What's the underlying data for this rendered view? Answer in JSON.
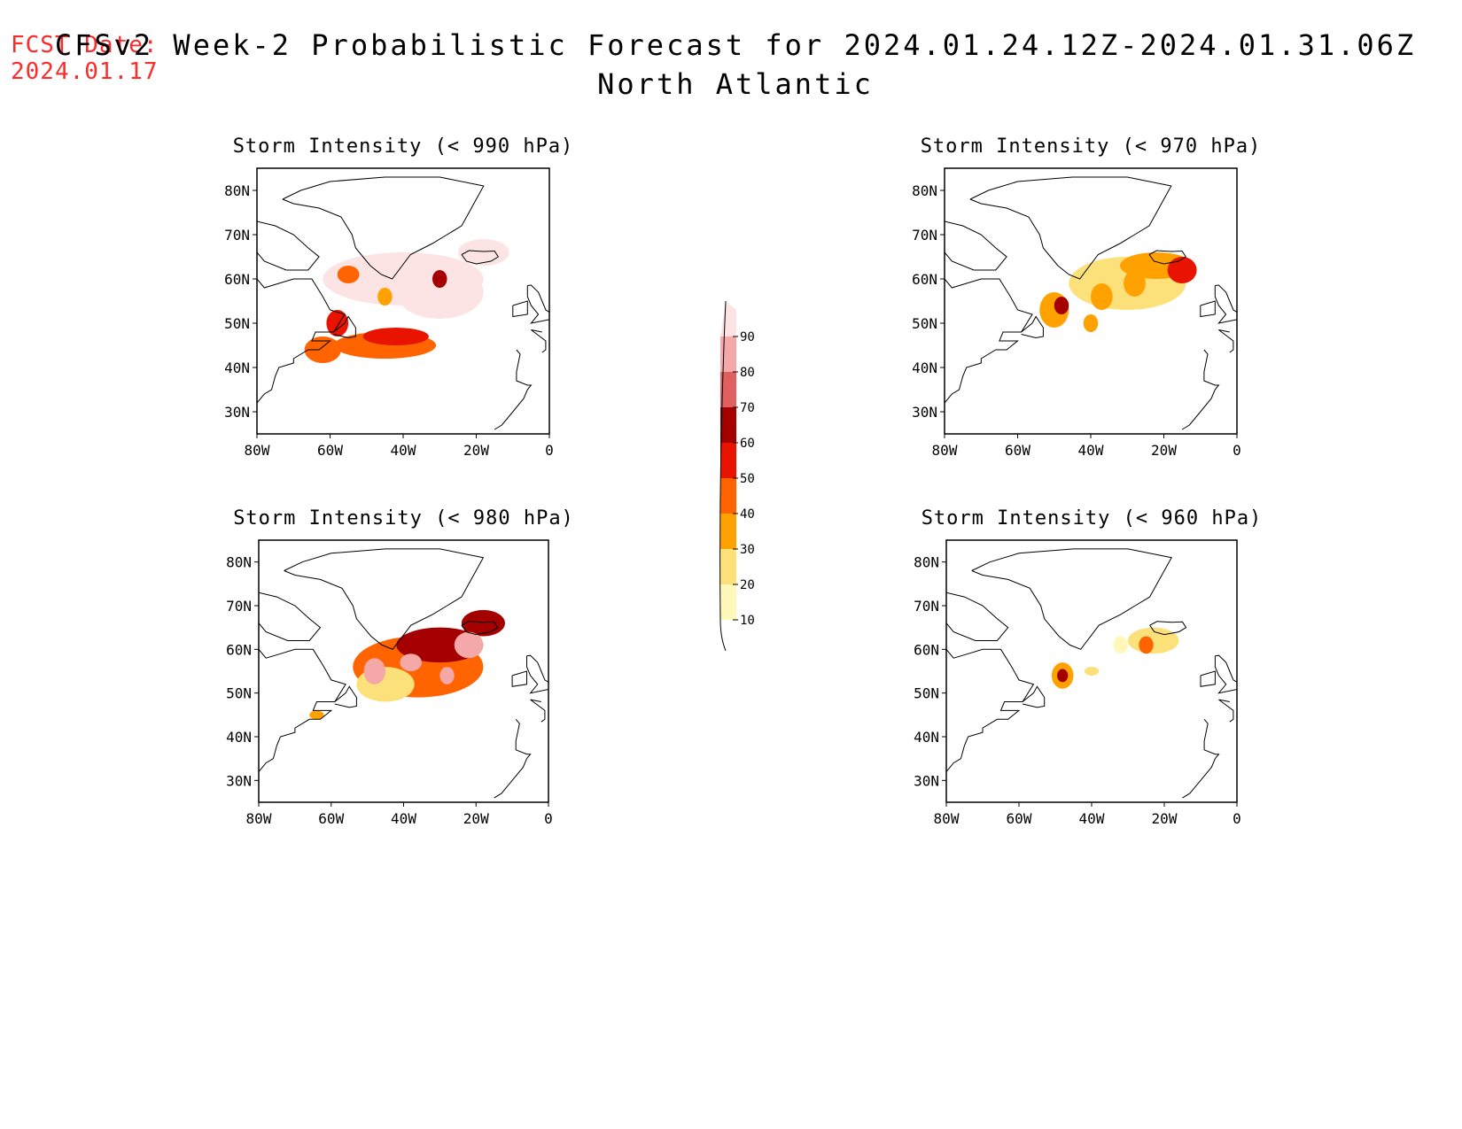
{
  "header": {
    "fcst_label": "FCST Date:",
    "fcst_date": "2024.01.17",
    "title": "CFSv2 Week-2 Probabilistic Forecast for 2024.01.24.12Z-2024.01.31.06Z",
    "subtitle": "North Atlantic"
  },
  "axes": {
    "lon_ticks": [
      "80W",
      "60W",
      "40W",
      "20W",
      "0"
    ],
    "lat_ticks": [
      "80N",
      "70N",
      "60N",
      "50N",
      "40N",
      "30N"
    ],
    "lon_range": [
      -80,
      0
    ],
    "lat_range": [
      25,
      85
    ]
  },
  "legend": {
    "levels": [
      "10",
      "20",
      "30",
      "40",
      "50",
      "60",
      "70",
      "80",
      "90"
    ],
    "colors": [
      "#fff8b8",
      "#fce07a",
      "#ffa200",
      "#ff6400",
      "#e81400",
      "#a50000",
      "#e06060",
      "#f4a8a8",
      "#fde4e4"
    ]
  },
  "panels": [
    {
      "title": "Storm Intensity (< 990 hPa)",
      "blobs": [
        {
          "lon": -40,
          "lat": 60,
          "rx": 22,
          "ry": 6,
          "level": 9
        },
        {
          "lon": -30,
          "lat": 57,
          "rx": 12,
          "ry": 6,
          "level": 9
        },
        {
          "lon": -18,
          "lat": 66,
          "rx": 7,
          "ry": 3,
          "level": 9
        },
        {
          "lon": -45,
          "lat": 45,
          "rx": 14,
          "ry": 3,
          "level": 4
        },
        {
          "lon": -42,
          "lat": 47,
          "rx": 9,
          "ry": 2,
          "level": 5
        },
        {
          "lon": -62,
          "lat": 44,
          "rx": 5,
          "ry": 3,
          "level": 4
        },
        {
          "lon": -30,
          "lat": 60,
          "rx": 2,
          "ry": 2,
          "level": 6
        },
        {
          "lon": -45,
          "lat": 56,
          "rx": 2,
          "ry": 2,
          "level": 3
        },
        {
          "lon": -55,
          "lat": 61,
          "rx": 3,
          "ry": 2,
          "level": 4
        },
        {
          "lon": -58,
          "lat": 50,
          "rx": 3,
          "ry": 3,
          "level": 5
        }
      ]
    },
    {
      "title": "Storm Intensity (< 970 hPa)",
      "blobs": [
        {
          "lon": -30,
          "lat": 59,
          "rx": 16,
          "ry": 6,
          "level": 2
        },
        {
          "lon": -22,
          "lat": 63,
          "rx": 10,
          "ry": 3,
          "level": 3
        },
        {
          "lon": -15,
          "lat": 62,
          "rx": 4,
          "ry": 3,
          "level": 5
        },
        {
          "lon": -50,
          "lat": 53,
          "rx": 4,
          "ry": 4,
          "level": 3
        },
        {
          "lon": -48,
          "lat": 54,
          "rx": 2,
          "ry": 2,
          "level": 6
        },
        {
          "lon": -37,
          "lat": 56,
          "rx": 3,
          "ry": 3,
          "level": 3
        },
        {
          "lon": -28,
          "lat": 59,
          "rx": 3,
          "ry": 3,
          "level": 3
        },
        {
          "lon": -40,
          "lat": 50,
          "rx": 2,
          "ry": 2,
          "level": 3
        }
      ]
    },
    {
      "title": "Storm Intensity (< 980 hPa)",
      "blobs": [
        {
          "lon": -36,
          "lat": 56,
          "rx": 18,
          "ry": 7,
          "level": 4
        },
        {
          "lon": -30,
          "lat": 61,
          "rx": 12,
          "ry": 4,
          "level": 6
        },
        {
          "lon": -18,
          "lat": 66,
          "rx": 6,
          "ry": 3,
          "level": 6
        },
        {
          "lon": -45,
          "lat": 52,
          "rx": 8,
          "ry": 4,
          "level": 2
        },
        {
          "lon": -48,
          "lat": 55,
          "rx": 3,
          "ry": 3,
          "level": 8
        },
        {
          "lon": -38,
          "lat": 57,
          "rx": 3,
          "ry": 2,
          "level": 8
        },
        {
          "lon": -22,
          "lat": 61,
          "rx": 4,
          "ry": 3,
          "level": 8
        },
        {
          "lon": -28,
          "lat": 54,
          "rx": 2,
          "ry": 2,
          "level": 8
        },
        {
          "lon": -64,
          "lat": 45,
          "rx": 2,
          "ry": 1,
          "level": 3
        }
      ]
    },
    {
      "title": "Storm Intensity (< 960 hPa)",
      "blobs": [
        {
          "lon": -48,
          "lat": 54,
          "rx": 3,
          "ry": 3,
          "level": 3
        },
        {
          "lon": -48,
          "lat": 54,
          "rx": 1.5,
          "ry": 1.5,
          "level": 6
        },
        {
          "lon": -40,
          "lat": 55,
          "rx": 2,
          "ry": 1,
          "level": 2
        },
        {
          "lon": -23,
          "lat": 62,
          "rx": 7,
          "ry": 3,
          "level": 2
        },
        {
          "lon": -25,
          "lat": 61,
          "rx": 2,
          "ry": 2,
          "level": 4
        },
        {
          "lon": -32,
          "lat": 61,
          "rx": 2,
          "ry": 2,
          "level": 1
        }
      ]
    }
  ]
}
